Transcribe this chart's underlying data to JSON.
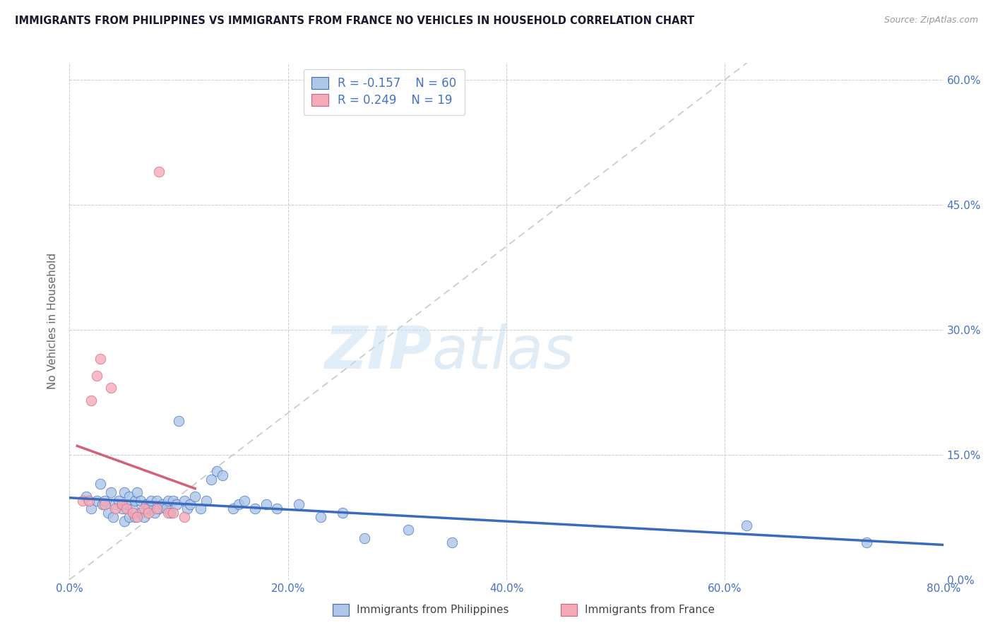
{
  "title": "IMMIGRANTS FROM PHILIPPINES VS IMMIGRANTS FROM FRANCE NO VEHICLES IN HOUSEHOLD CORRELATION CHART",
  "source_text": "Source: ZipAtlas.com",
  "ylabel": "No Vehicles in Household",
  "legend_label_1": "Immigrants from Philippines",
  "legend_label_2": "Immigrants from France",
  "r1": -0.157,
  "n1": 60,
  "r2": 0.249,
  "n2": 19,
  "xlim": [
    0.0,
    0.8
  ],
  "ylim": [
    0.0,
    0.62
  ],
  "xticks": [
    0.0,
    0.2,
    0.4,
    0.6,
    0.8
  ],
  "yticks": [
    0.0,
    0.15,
    0.3,
    0.45,
    0.6
  ],
  "color_philippines": "#aec6e8",
  "color_france": "#f4aab8",
  "line_color_philippines": "#3a6bbf",
  "line_color_france": "#d4607a",
  "diagonal_color": "#c8c8c8",
  "background_color": "#ffffff",
  "watermark_zip": "ZIP",
  "watermark_atlas": "atlas",
  "title_color": "#1a1a2e",
  "axis_label_color": "#4472c4",
  "tick_color": "#4472c4",
  "philippines_x": [
    0.015,
    0.02,
    0.025,
    0.028,
    0.03,
    0.032,
    0.035,
    0.038,
    0.04,
    0.042,
    0.045,
    0.048,
    0.05,
    0.05,
    0.052,
    0.055,
    0.055,
    0.058,
    0.06,
    0.06,
    0.062,
    0.065,
    0.065,
    0.068,
    0.07,
    0.072,
    0.075,
    0.078,
    0.08,
    0.082,
    0.085,
    0.088,
    0.09,
    0.092,
    0.095,
    0.098,
    0.1,
    0.105,
    0.108,
    0.11,
    0.115,
    0.12,
    0.125,
    0.13,
    0.135,
    0.14,
    0.15,
    0.155,
    0.16,
    0.17,
    0.18,
    0.19,
    0.21,
    0.23,
    0.25,
    0.27,
    0.31,
    0.35,
    0.62,
    0.73
  ],
  "philippines_y": [
    0.1,
    0.085,
    0.095,
    0.115,
    0.09,
    0.095,
    0.08,
    0.105,
    0.075,
    0.09,
    0.095,
    0.085,
    0.07,
    0.105,
    0.09,
    0.075,
    0.1,
    0.085,
    0.075,
    0.095,
    0.105,
    0.08,
    0.095,
    0.075,
    0.09,
    0.085,
    0.095,
    0.08,
    0.095,
    0.085,
    0.09,
    0.085,
    0.095,
    0.08,
    0.095,
    0.09,
    0.19,
    0.095,
    0.085,
    0.09,
    0.1,
    0.085,
    0.095,
    0.12,
    0.13,
    0.125,
    0.085,
    0.09,
    0.095,
    0.085,
    0.09,
    0.085,
    0.09,
    0.075,
    0.08,
    0.05,
    0.06,
    0.045,
    0.065,
    0.045
  ],
  "france_x": [
    0.012,
    0.018,
    0.02,
    0.025,
    0.028,
    0.032,
    0.038,
    0.042,
    0.048,
    0.052,
    0.058,
    0.062,
    0.068,
    0.072,
    0.08,
    0.082,
    0.09,
    0.095,
    0.105
  ],
  "france_y": [
    0.095,
    0.095,
    0.215,
    0.245,
    0.265,
    0.09,
    0.23,
    0.085,
    0.09,
    0.085,
    0.08,
    0.075,
    0.085,
    0.08,
    0.085,
    0.49,
    0.08,
    0.08,
    0.075
  ]
}
